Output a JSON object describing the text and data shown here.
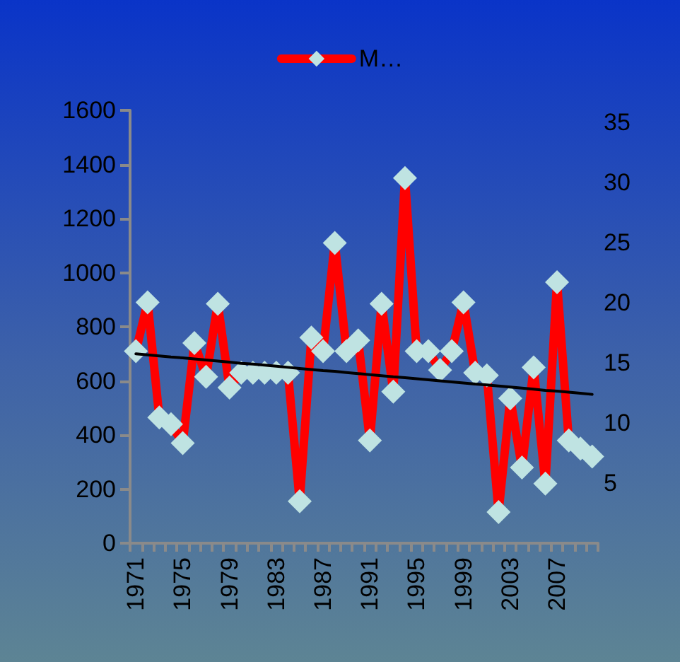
{
  "chart_data": {
    "type": "line",
    "categories": [
      "1971",
      null,
      null,
      null,
      "1975",
      null,
      null,
      null,
      "1979",
      null,
      null,
      null,
      "1983",
      null,
      null,
      null,
      "1987",
      null,
      null,
      null,
      "1991",
      null,
      null,
      null,
      "1995",
      null,
      null,
      null,
      "1999",
      null,
      null,
      null,
      "2003",
      null,
      null,
      null,
      "2007",
      null,
      null,
      null
    ],
    "series": [
      {
        "name": "M…",
        "color": "#ff0000",
        "values": [
          710,
          890,
          465,
          440,
          370,
          740,
          615,
          885,
          575,
          630,
          630,
          630,
          630,
          630,
          155,
          760,
          710,
          1110,
          710,
          750,
          380,
          885,
          560,
          1350,
          710,
          710,
          640,
          710,
          890,
          630,
          620,
          115,
          535,
          280,
          650,
          220,
          965,
          380,
          350,
          320
        ]
      },
      {
        "type": "line",
        "color": "#000000",
        "marker": "none",
        "values": [
          700,
          696,
          692,
          688,
          685,
          681,
          677,
          673,
          669,
          665,
          662,
          658,
          654,
          650,
          646,
          642,
          638,
          635,
          631,
          627,
          623,
          619,
          615,
          612,
          608,
          604,
          600,
          596,
          592,
          588,
          585,
          581,
          577,
          573,
          569,
          565,
          562,
          558,
          554,
          550
        ]
      }
    ],
    "ylim": [
      0,
      1600
    ],
    "yticks": [
      0,
      200,
      400,
      600,
      800,
      1000,
      1200,
      1400,
      1600
    ],
    "y2lim": [
      0,
      36
    ],
    "y2ticks": [
      5,
      10,
      15,
      20,
      25,
      30,
      35
    ],
    "legend": "top",
    "marker": "diamond",
    "line_style": "solid",
    "grid": false
  }
}
